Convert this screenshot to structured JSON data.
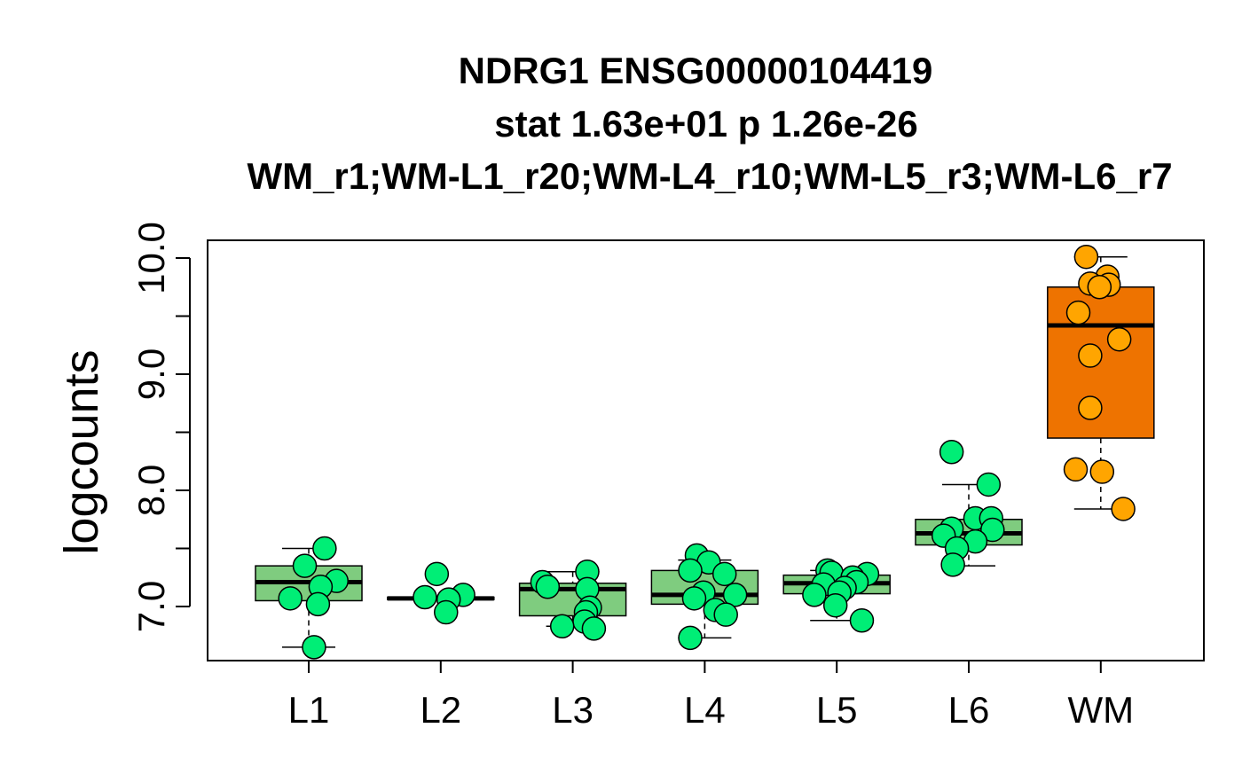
{
  "chart_data": {
    "type": "box",
    "title_lines": [
      "NDRG1 ENSG00000104419",
      "stat 1.63e+01 p 1.26e-26",
      "WM_r1;WM-L1_r20;WM-L4_r10;WM-L5_r3;WM-L6_r7"
    ],
    "xlabel": "",
    "ylabel": "logcounts",
    "ylim": [
      6.5,
      10.2
    ],
    "yticks": [
      7.0,
      7.5,
      8.0,
      8.5,
      9.0,
      9.5,
      10.0
    ],
    "ytick_labels": [
      "7.0",
      "",
      "8.0",
      "",
      "9.0",
      "",
      "10.0"
    ],
    "categories": [
      "L1",
      "L2",
      "L3",
      "L4",
      "L5",
      "L6",
      "WM"
    ],
    "colors": {
      "layer_box_fill": "#7fcc7f",
      "wm_box_fill": "#ee7300",
      "layer_point_fill": "#00ee76",
      "wm_point_fill": "#ffa500",
      "stroke": "#000000"
    },
    "boxes": [
      {
        "category": "L1",
        "whisker_low": 6.65,
        "q1": 7.05,
        "median": 7.21,
        "q3": 7.35,
        "whisker_high": 7.5
      },
      {
        "category": "L2",
        "whisker_low": 7.06,
        "q1": 7.06,
        "median": 7.07,
        "q3": 7.08,
        "whisker_high": 7.08
      },
      {
        "category": "L3",
        "whisker_low": 6.83,
        "q1": 6.92,
        "median": 7.15,
        "q3": 7.2,
        "whisker_high": 7.3
      },
      {
        "category": "L4",
        "whisker_low": 6.73,
        "q1": 7.02,
        "median": 7.1,
        "q3": 7.31,
        "whisker_high": 7.4
      },
      {
        "category": "L5",
        "whisker_low": 6.88,
        "q1": 7.11,
        "median": 7.2,
        "q3": 7.27,
        "whisker_high": 7.31
      },
      {
        "category": "L6",
        "whisker_low": 7.35,
        "q1": 7.53,
        "median": 7.63,
        "q3": 7.75,
        "whisker_high": 8.05
      },
      {
        "category": "WM",
        "whisker_low": 7.84,
        "q1": 8.45,
        "median": 9.42,
        "q3": 9.75,
        "whisker_high": 10.01
      }
    ],
    "points": [
      {
        "category": "L1",
        "values": [
          7.5,
          7.35,
          7.22,
          7.17,
          7.07,
          7.02,
          6.65
        ],
        "jitter": [
          0.12,
          -0.03,
          0.21,
          0.09,
          -0.14,
          0.07,
          0.04
        ]
      },
      {
        "category": "L2",
        "values": [
          7.28,
          7.1,
          7.08,
          7.06,
          6.95
        ],
        "jitter": [
          -0.03,
          0.17,
          -0.12,
          0.06,
          0.04
        ]
      },
      {
        "category": "L3",
        "values": [
          7.3,
          7.21,
          7.17,
          7.15,
          6.99,
          6.95,
          6.87,
          6.83,
          6.81
        ],
        "jitter": [
          0.11,
          -0.23,
          -0.19,
          0.11,
          0.13,
          0.1,
          0.09,
          -0.08,
          0.16
        ]
      },
      {
        "category": "L4",
        "values": [
          7.44,
          7.38,
          7.31,
          7.28,
          7.12,
          7.1,
          7.07,
          6.97,
          6.93,
          6.73
        ],
        "jitter": [
          -0.06,
          0.03,
          -0.11,
          0.15,
          -0.01,
          0.23,
          -0.08,
          0.08,
          0.16,
          -0.11
        ]
      },
      {
        "category": "L5",
        "values": [
          7.31,
          7.29,
          7.28,
          7.25,
          7.21,
          7.19,
          7.16,
          7.12,
          7.1,
          7.01,
          6.88
        ],
        "jitter": [
          -0.07,
          -0.04,
          0.23,
          0.12,
          0.15,
          -0.1,
          0.06,
          0.02,
          -0.17,
          -0.01,
          0.19
        ]
      },
      {
        "category": "L6",
        "values": [
          8.33,
          8.05,
          7.76,
          7.76,
          7.67,
          7.66,
          7.61,
          7.56,
          7.5,
          7.36
        ],
        "jitter": [
          -0.13,
          0.15,
          0.05,
          0.17,
          -0.13,
          0.18,
          -0.19,
          0.05,
          -0.09,
          -0.12
        ]
      },
      {
        "category": "WM",
        "values": [
          10.01,
          9.84,
          9.78,
          9.77,
          9.75,
          9.53,
          9.3,
          9.16,
          8.71,
          8.18,
          8.16,
          7.84
        ],
        "jitter": [
          -0.11,
          0.05,
          -0.08,
          0.06,
          -0.01,
          -0.17,
          0.14,
          -0.08,
          -0.08,
          -0.19,
          0.01,
          0.17
        ]
      }
    ]
  }
}
